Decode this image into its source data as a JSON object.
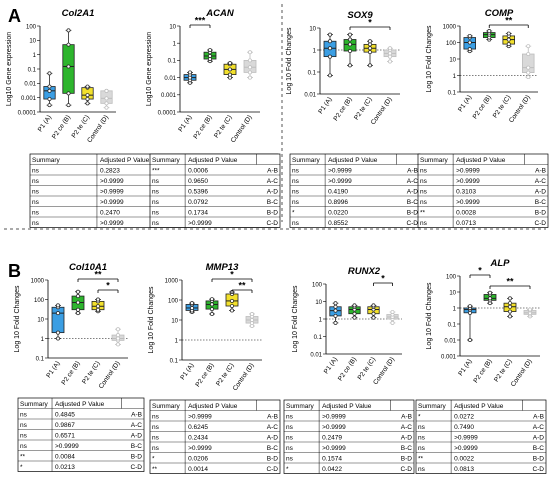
{
  "panel_labels": [
    "A",
    "B"
  ],
  "colors": {
    "blue": "#3b9ee3",
    "green": "#2db52d",
    "yellow": "#f2e02c",
    "gray": "#d9d9d9"
  },
  "chart_data": [
    {
      "type": "box",
      "title": "Col2A1",
      "ylabel": "Log10 Gene expression",
      "log": true,
      "ylim": [
        0.0001,
        100
      ],
      "yticks": [
        "100",
        "10",
        "1",
        "0.1",
        "0.01",
        "0.001",
        "0.0001"
      ],
      "categories": [
        "P1 (A)",
        "P2 ce (B)",
        "P2 te (C)",
        "Control (D)"
      ],
      "series": [
        {
          "min": 0.0003,
          "q1": 0.0008,
          "median": 0.003,
          "q3": 0.006,
          "max": 0.05
        },
        {
          "min": 0.0003,
          "q1": 0.002,
          "median": 0.15,
          "q3": 5,
          "max": 50
        },
        {
          "min": 0.0004,
          "q1": 0.0008,
          "median": 0.0015,
          "q3": 0.005,
          "max": 0.006
        },
        {
          "min": 0.0002,
          "q1": 0.0004,
          "median": 0.0009,
          "q3": 0.003,
          "max": 0.003
        }
      ],
      "sig": [],
      "table": {
        "headers": [
          "Summary",
          "Adjusted P Value",
          ""
        ],
        "rows": [
          [
            "ns",
            "0.2823",
            "A-B"
          ],
          [
            "ns",
            ">0.9999",
            "A-C"
          ],
          [
            "ns",
            ">0.9999",
            "A-D"
          ],
          [
            "ns",
            ">0.9999",
            "B-C"
          ],
          [
            "ns",
            "0.2470",
            "B-D"
          ],
          [
            "ns",
            ">0.9999",
            "C-D"
          ]
        ]
      }
    },
    {
      "type": "box",
      "title": "ACAN",
      "ylabel": "Log10 Gene expression",
      "log": true,
      "ylim": [
        0.0001,
        10
      ],
      "yticks": [
        "10",
        "1",
        "0.1",
        "0.01",
        "0.001",
        "0.0001"
      ],
      "categories": [
        "P1 (A)",
        "P2 ce (B)",
        "P2 te (C)",
        "Control (D)"
      ],
      "series": [
        {
          "min": 0.005,
          "q1": 0.007,
          "median": 0.01,
          "q3": 0.015,
          "max": 0.02
        },
        {
          "min": 0.09,
          "q1": 0.12,
          "median": 0.18,
          "q3": 0.3,
          "max": 0.4
        },
        {
          "min": 0.01,
          "q1": 0.015,
          "median": 0.03,
          "q3": 0.06,
          "max": 0.07
        },
        {
          "min": 0.01,
          "q1": 0.02,
          "median": 0.04,
          "q3": 0.1,
          "max": 0.3
        }
      ],
      "sig": [
        {
          "from": 0,
          "to": 1,
          "label": "***"
        }
      ],
      "table": {
        "headers": [
          "Summary",
          "Adjusted P Value",
          ""
        ],
        "rows": [
          [
            "***",
            "0.0006",
            "A-B"
          ],
          [
            "ns",
            "0.9650",
            "A-C"
          ],
          [
            "ns",
            "0.5396",
            "A-D"
          ],
          [
            "ns",
            "0.0792",
            "B-C"
          ],
          [
            "ns",
            "0.1734",
            "B-D"
          ],
          [
            "ns",
            ">0.9999",
            "C-D"
          ]
        ]
      }
    },
    {
      "type": "box",
      "title": "SOX9",
      "ylabel": "Log 10 Fold Changes",
      "log": true,
      "ylim": [
        0.01,
        10
      ],
      "yticks": [
        "10",
        "1",
        "0.1",
        "0.01"
      ],
      "baseline": 1,
      "categories": [
        "P1 (A)",
        "P2 ce (B)",
        "P2 te (C)",
        "Control (D)"
      ],
      "series": [
        {
          "min": 0.07,
          "q1": 0.5,
          "median": 1.2,
          "q3": 2.5,
          "max": 5
        },
        {
          "min": 0.2,
          "q1": 0.9,
          "median": 1.8,
          "q3": 3,
          "max": 5
        },
        {
          "min": 0.2,
          "q1": 0.8,
          "median": 1.2,
          "q3": 1.8,
          "max": 2.5
        },
        {
          "min": 0.3,
          "q1": 0.5,
          "median": 0.7,
          "q3": 1.0,
          "max": 1.2
        }
      ],
      "sig": [
        {
          "from": 1,
          "to": 3,
          "label": "*"
        }
      ],
      "table": {
        "headers": [
          "Summary",
          "Adjusted P Value",
          ""
        ],
        "rows": [
          [
            "ns",
            ">0.9999",
            "A-B"
          ],
          [
            "ns",
            ">0.9999",
            "A-C"
          ],
          [
            "ns",
            "0.4190",
            "A-D"
          ],
          [
            "ns",
            "0.8996",
            "B-C"
          ],
          [
            "*",
            "0.0220",
            "B-D"
          ],
          [
            "ns",
            "0.8552",
            "C-D"
          ]
        ]
      }
    },
    {
      "type": "box",
      "title": "COMP",
      "ylabel": "Log 10 Fold Changes",
      "log": true,
      "ylim": [
        0.1,
        1000
      ],
      "yticks": [
        "1000",
        "100",
        "10",
        "1",
        "0.1"
      ],
      "baseline": 1,
      "categories": [
        "P1 (A)",
        "P2 ce (B)",
        "P2 te (C)",
        "Control (D)"
      ],
      "series": [
        {
          "min": 30,
          "q1": 40,
          "median": 100,
          "q3": 200,
          "max": 250
        },
        {
          "min": 150,
          "q1": 200,
          "median": 300,
          "q3": 400,
          "max": 500
        },
        {
          "min": 60,
          "q1": 80,
          "median": 150,
          "q3": 250,
          "max": 350
        },
        {
          "min": 0.8,
          "q1": 1.5,
          "median": 3,
          "q3": 20,
          "max": 60
        }
      ],
      "sig": [
        {
          "from": 1,
          "to": 3,
          "label": "**"
        }
      ],
      "table": {
        "headers": [
          "Summary",
          "Adjusted P Value",
          ""
        ],
        "rows": [
          [
            "ns",
            ">0.9999",
            "A-B"
          ],
          [
            "ns",
            ">0.9999",
            "A-C"
          ],
          [
            "ns",
            "0.3103",
            "A-D"
          ],
          [
            "ns",
            ">0.9999",
            "B-C"
          ],
          [
            "**",
            "0.0028",
            "B-D"
          ],
          [
            "ns",
            "0.0713",
            "C-D"
          ]
        ]
      }
    },
    {
      "type": "box",
      "title": "Col10A1",
      "ylabel": "Log 10 Fold Changes",
      "log": true,
      "ylim": [
        0.1,
        1000
      ],
      "yticks": [
        "1000",
        "100",
        "10",
        "1",
        "0.1"
      ],
      "baseline": 1,
      "categories": [
        "P1 (A)",
        "P2 ce (B)",
        "P2 te (C)",
        "Control (D)"
      ],
      "series": [
        {
          "min": 1,
          "q1": 2,
          "median": 20,
          "q3": 40,
          "max": 50
        },
        {
          "min": 20,
          "q1": 30,
          "median": 70,
          "q3": 150,
          "max": 250
        },
        {
          "min": 25,
          "q1": 30,
          "median": 45,
          "q3": 80,
          "max": 100
        },
        {
          "min": 0.5,
          "q1": 0.8,
          "median": 1,
          "q3": 1.5,
          "max": 3
        }
      ],
      "sig": [
        {
          "from": 1,
          "to": 3,
          "label": "**"
        },
        {
          "from": 2,
          "to": 3,
          "label": "*"
        }
      ],
      "table": {
        "headers": [
          "Summary",
          "Adjusted P Value",
          ""
        ],
        "rows": [
          [
            "ns",
            "0.4845",
            "A-B"
          ],
          [
            "ns",
            "0.9867",
            "A-C"
          ],
          [
            "ns",
            "0.6571",
            "A-D"
          ],
          [
            "ns",
            ">0.9999",
            "B-C"
          ],
          [
            "**",
            "0.0084",
            "B-D"
          ],
          [
            "*",
            "0.0213",
            "C-D"
          ]
        ]
      }
    },
    {
      "type": "box",
      "title": "MMP13",
      "ylabel": "Log 10 Fold Changes",
      "log": true,
      "ylim": [
        0.1,
        1000
      ],
      "yticks": [
        "1000",
        "100",
        "10",
        "1",
        "0.1"
      ],
      "baseline": 1,
      "categories": [
        "P1 (A)",
        "P2 ce (B)",
        "P2 te (C)",
        "Control (D)"
      ],
      "series": [
        {
          "min": 25,
          "q1": 30,
          "median": 40,
          "q3": 60,
          "max": 70
        },
        {
          "min": 20,
          "q1": 35,
          "median": 60,
          "q3": 90,
          "max": 110
        },
        {
          "min": 30,
          "q1": 50,
          "median": 90,
          "q3": 200,
          "max": 250
        },
        {
          "min": 5,
          "q1": 7,
          "median": 10,
          "q3": 15,
          "max": 20
        }
      ],
      "sig": [
        {
          "from": 1,
          "to": 3,
          "label": "*"
        },
        {
          "from": 2,
          "to": 3,
          "label": "**"
        }
      ],
      "table": {
        "headers": [
          "Summary",
          "Adjusted P Value",
          ""
        ],
        "rows": [
          [
            "ns",
            ">0.9999",
            "A-B"
          ],
          [
            "ns",
            "0.6245",
            "A-C"
          ],
          [
            "ns",
            "0.2434",
            "A-D"
          ],
          [
            "ns",
            ">0.9999",
            "B-C"
          ],
          [
            "*",
            "0.0206",
            "B-D"
          ],
          [
            "**",
            "0.0014",
            "C-D"
          ]
        ]
      }
    },
    {
      "type": "box",
      "title": "RUNX2",
      "ylabel": "Log 10 Fold Changes",
      "log": true,
      "ylim": [
        0.01,
        100
      ],
      "yticks": [
        "100",
        "10",
        "1",
        "0.1",
        "0.01"
      ],
      "baseline": 1,
      "categories": [
        "P1 (A)",
        "P2 ce (B)",
        "P2 te (C)",
        "Control (D)"
      ],
      "series": [
        {
          "min": 0.6,
          "q1": 1.5,
          "median": 3,
          "q3": 5,
          "max": 8
        },
        {
          "min": 1.2,
          "q1": 2,
          "median": 3.5,
          "q3": 5,
          "max": 6
        },
        {
          "min": 1.2,
          "q1": 2,
          "median": 3.5,
          "q3": 5,
          "max": 6
        },
        {
          "min": 0.6,
          "q1": 1.0,
          "median": 1.3,
          "q3": 1.8,
          "max": 2.5
        }
      ],
      "sig": [
        {
          "from": 2,
          "to": 3,
          "label": "*"
        }
      ],
      "table": {
        "headers": [
          "Summary",
          "Adjusted P Value",
          ""
        ],
        "rows": [
          [
            "ns",
            ">0.9999",
            "A-B"
          ],
          [
            "ns",
            ">0.9999",
            "A-C"
          ],
          [
            "ns",
            "0.2479",
            "A-D"
          ],
          [
            "ns",
            ">0.9999",
            "B-C"
          ],
          [
            "ns",
            "0.1574",
            "B-D"
          ],
          [
            "*",
            "0.0422",
            "C-D"
          ]
        ]
      }
    },
    {
      "type": "box",
      "title": "ALP",
      "ylabel": "Log 10 Fold Changes",
      "log": true,
      "ylim": [
        0.001,
        100
      ],
      "yticks": [
        "100",
        "10",
        "1",
        "0.1",
        "0.01",
        "0.001"
      ],
      "baseline": 1,
      "categories": [
        "P1 (A)",
        "P2 ce (B)",
        "P2 te (C)",
        "Control (D)"
      ],
      "series": [
        {
          "min": 0.01,
          "q1": 0.5,
          "median": 0.8,
          "q3": 1.0,
          "max": 1.3
        },
        {
          "min": 2,
          "q1": 3,
          "median": 4,
          "q3": 7,
          "max": 9
        },
        {
          "min": 0.3,
          "q1": 0.6,
          "median": 1.2,
          "q3": 2,
          "max": 4
        },
        {
          "min": 0.3,
          "q1": 0.4,
          "median": 0.5,
          "q3": 0.7,
          "max": 0.8
        }
      ],
      "sig": [
        {
          "from": 0,
          "to": 1,
          "label": "*"
        },
        {
          "from": 1,
          "to": 3,
          "label": "**"
        }
      ],
      "table": {
        "headers": [
          "Summary",
          "Adjusted P Value",
          ""
        ],
        "rows": [
          [
            "*",
            "0.0272",
            "A-B"
          ],
          [
            "ns",
            "0.7490",
            "A-C"
          ],
          [
            "ns",
            ">0.9999",
            "A-D"
          ],
          [
            "ns",
            ">0.9999",
            "B-C"
          ],
          [
            "**",
            "0.0022",
            "B-D"
          ],
          [
            "ns",
            "0.0813",
            "C-D"
          ]
        ]
      }
    }
  ]
}
